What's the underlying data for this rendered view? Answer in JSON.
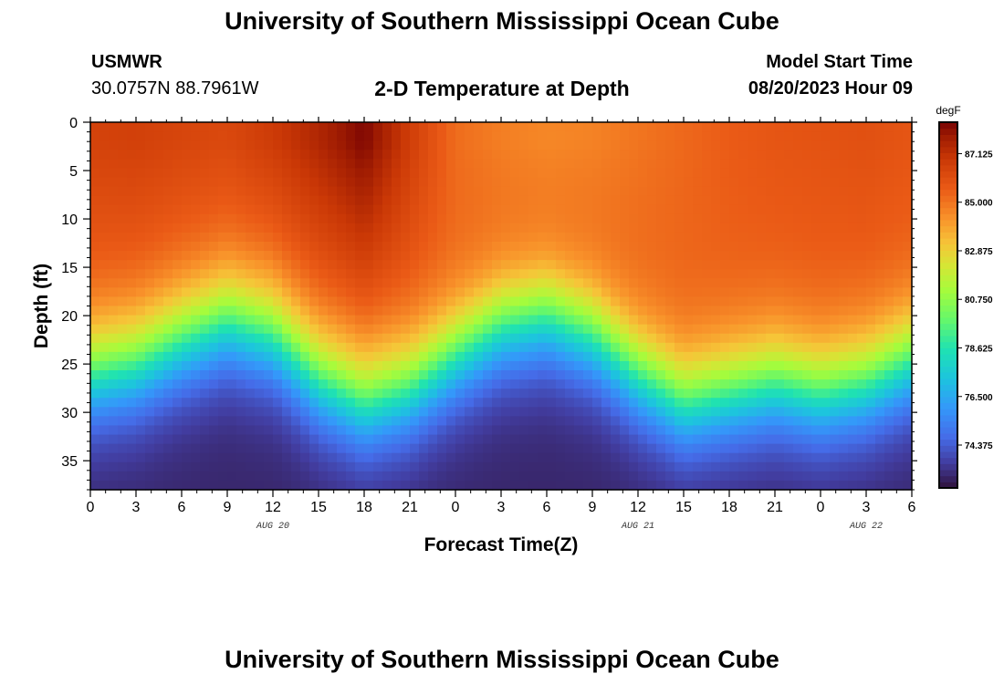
{
  "header": {
    "title": "University of Southern Mississippi Ocean Cube",
    "station_id": "USMWR",
    "station_coords": "30.0757N  88.7961W",
    "subtitle": "2-D Temperature at Depth",
    "model_label": "Model Start Time",
    "model_time": "08/20/2023 Hour 09"
  },
  "footer": {
    "title": "University of Southern Mississippi Ocean Cube"
  },
  "chart_data": {
    "type": "heatmap",
    "title": "2-D Temperature at Depth",
    "xlabel": "Forecast Time(Z)",
    "ylabel": "Depth (ft)",
    "x_hours_range": [
      0,
      54
    ],
    "x_tick_labels": [
      "0",
      "3",
      "6",
      "9",
      "12",
      "15",
      "18",
      "21",
      "0",
      "3",
      "6",
      "9",
      "12",
      "15",
      "18",
      "21",
      "0",
      "3",
      "6"
    ],
    "date_labels": [
      {
        "label": "AUG 20",
        "hour": 12
      },
      {
        "label": "AUG 21",
        "hour": 36
      },
      {
        "label": "AUG 22",
        "hour": 51
      }
    ],
    "y_range": [
      0,
      38
    ],
    "y_ticks": [
      0,
      5,
      10,
      15,
      20,
      25,
      30,
      35
    ],
    "colorbar": {
      "unit": "degF",
      "min": 72.5,
      "max": 88.5,
      "tick_values": [
        87.125,
        85.0,
        82.875,
        80.75,
        78.625,
        76.5,
        74.375
      ],
      "tick_labels": [
        "87.125",
        "85.000",
        "82.875",
        "80.750",
        "78.625",
        "76.500",
        "74.375"
      ]
    },
    "thermocline_depth_ft": {
      "hours": [
        0,
        3,
        6,
        9,
        12,
        15,
        18,
        21,
        24,
        27,
        30,
        33,
        36,
        39,
        42,
        45,
        48,
        51,
        54
      ],
      "values": [
        26,
        25,
        22.5,
        20.5,
        22,
        26.5,
        29,
        27.5,
        24,
        21,
        20,
        22,
        26,
        29,
        28,
        27,
        28,
        27,
        24.5
      ]
    },
    "surface_temp_degF": {
      "hours": [
        0,
        3,
        6,
        9,
        12,
        15,
        18,
        21,
        24,
        27,
        30,
        33,
        36,
        39,
        42,
        45,
        48,
        51,
        54
      ],
      "values": [
        86.5,
        86.6,
        86.4,
        86.3,
        86.8,
        87.5,
        88.4,
        86.7,
        85.2,
        84.8,
        84.6,
        84.7,
        85.0,
        85.3,
        85.6,
        85.8,
        85.9,
        86.0,
        85.8
      ]
    },
    "deep_temp_degF": 73.0,
    "upper_layer_temp_degF": 85.5
  }
}
